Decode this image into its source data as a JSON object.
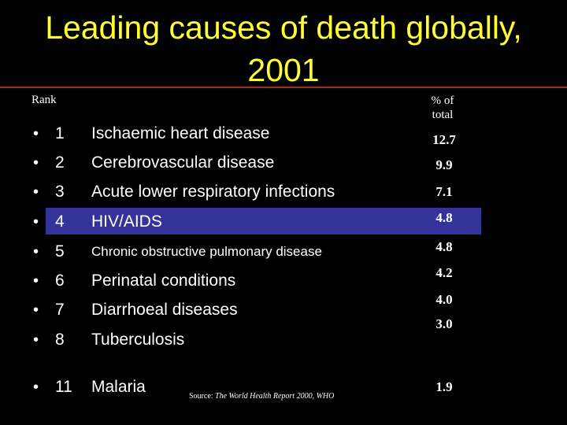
{
  "title": {
    "line1": "Leading causes of death globally,",
    "line2": "2001"
  },
  "headers": {
    "rank": "Rank",
    "pct_line1": "% of",
    "pct_line2": "total"
  },
  "rows": [
    {
      "bullet": "•",
      "rank": "1",
      "cause": "Ischaemic heart disease",
      "pct": "12.7"
    },
    {
      "bullet": "•",
      "rank": "2",
      "cause": "Cerebrovascular disease",
      "pct": "9.9"
    },
    {
      "bullet": "•",
      "rank": "3",
      "cause": "Acute lower respiratory infections",
      "pct": "7.1"
    },
    {
      "bullet": "•",
      "rank": "4",
      "cause": "HIV/AIDS",
      "pct": "4.8"
    },
    {
      "bullet": "•",
      "rank": "5",
      "cause": "Chronic obstructive pulmonary  disease",
      "pct": "4.8"
    },
    {
      "bullet": "•",
      "rank": "6",
      "cause": "Perinatal conditions",
      "pct": "4.2"
    },
    {
      "bullet": "•",
      "rank": "7",
      "cause": "Diarrhoeal diseases",
      "pct": "4.0"
    },
    {
      "bullet": "•",
      "rank": "8",
      "cause": "Tuberculosis",
      "pct": "3.0"
    },
    {
      "bullet": "•",
      "rank": "11",
      "cause": "Malaria",
      "pct": "1.9"
    }
  ],
  "source": {
    "lead": "Source:",
    "text": "The World Health Report 2000, WHO"
  },
  "colors": {
    "background": "#000000",
    "title": "#ffff33",
    "text": "#ffffff",
    "highlight": "#333399",
    "rule": "#a32a1e"
  }
}
